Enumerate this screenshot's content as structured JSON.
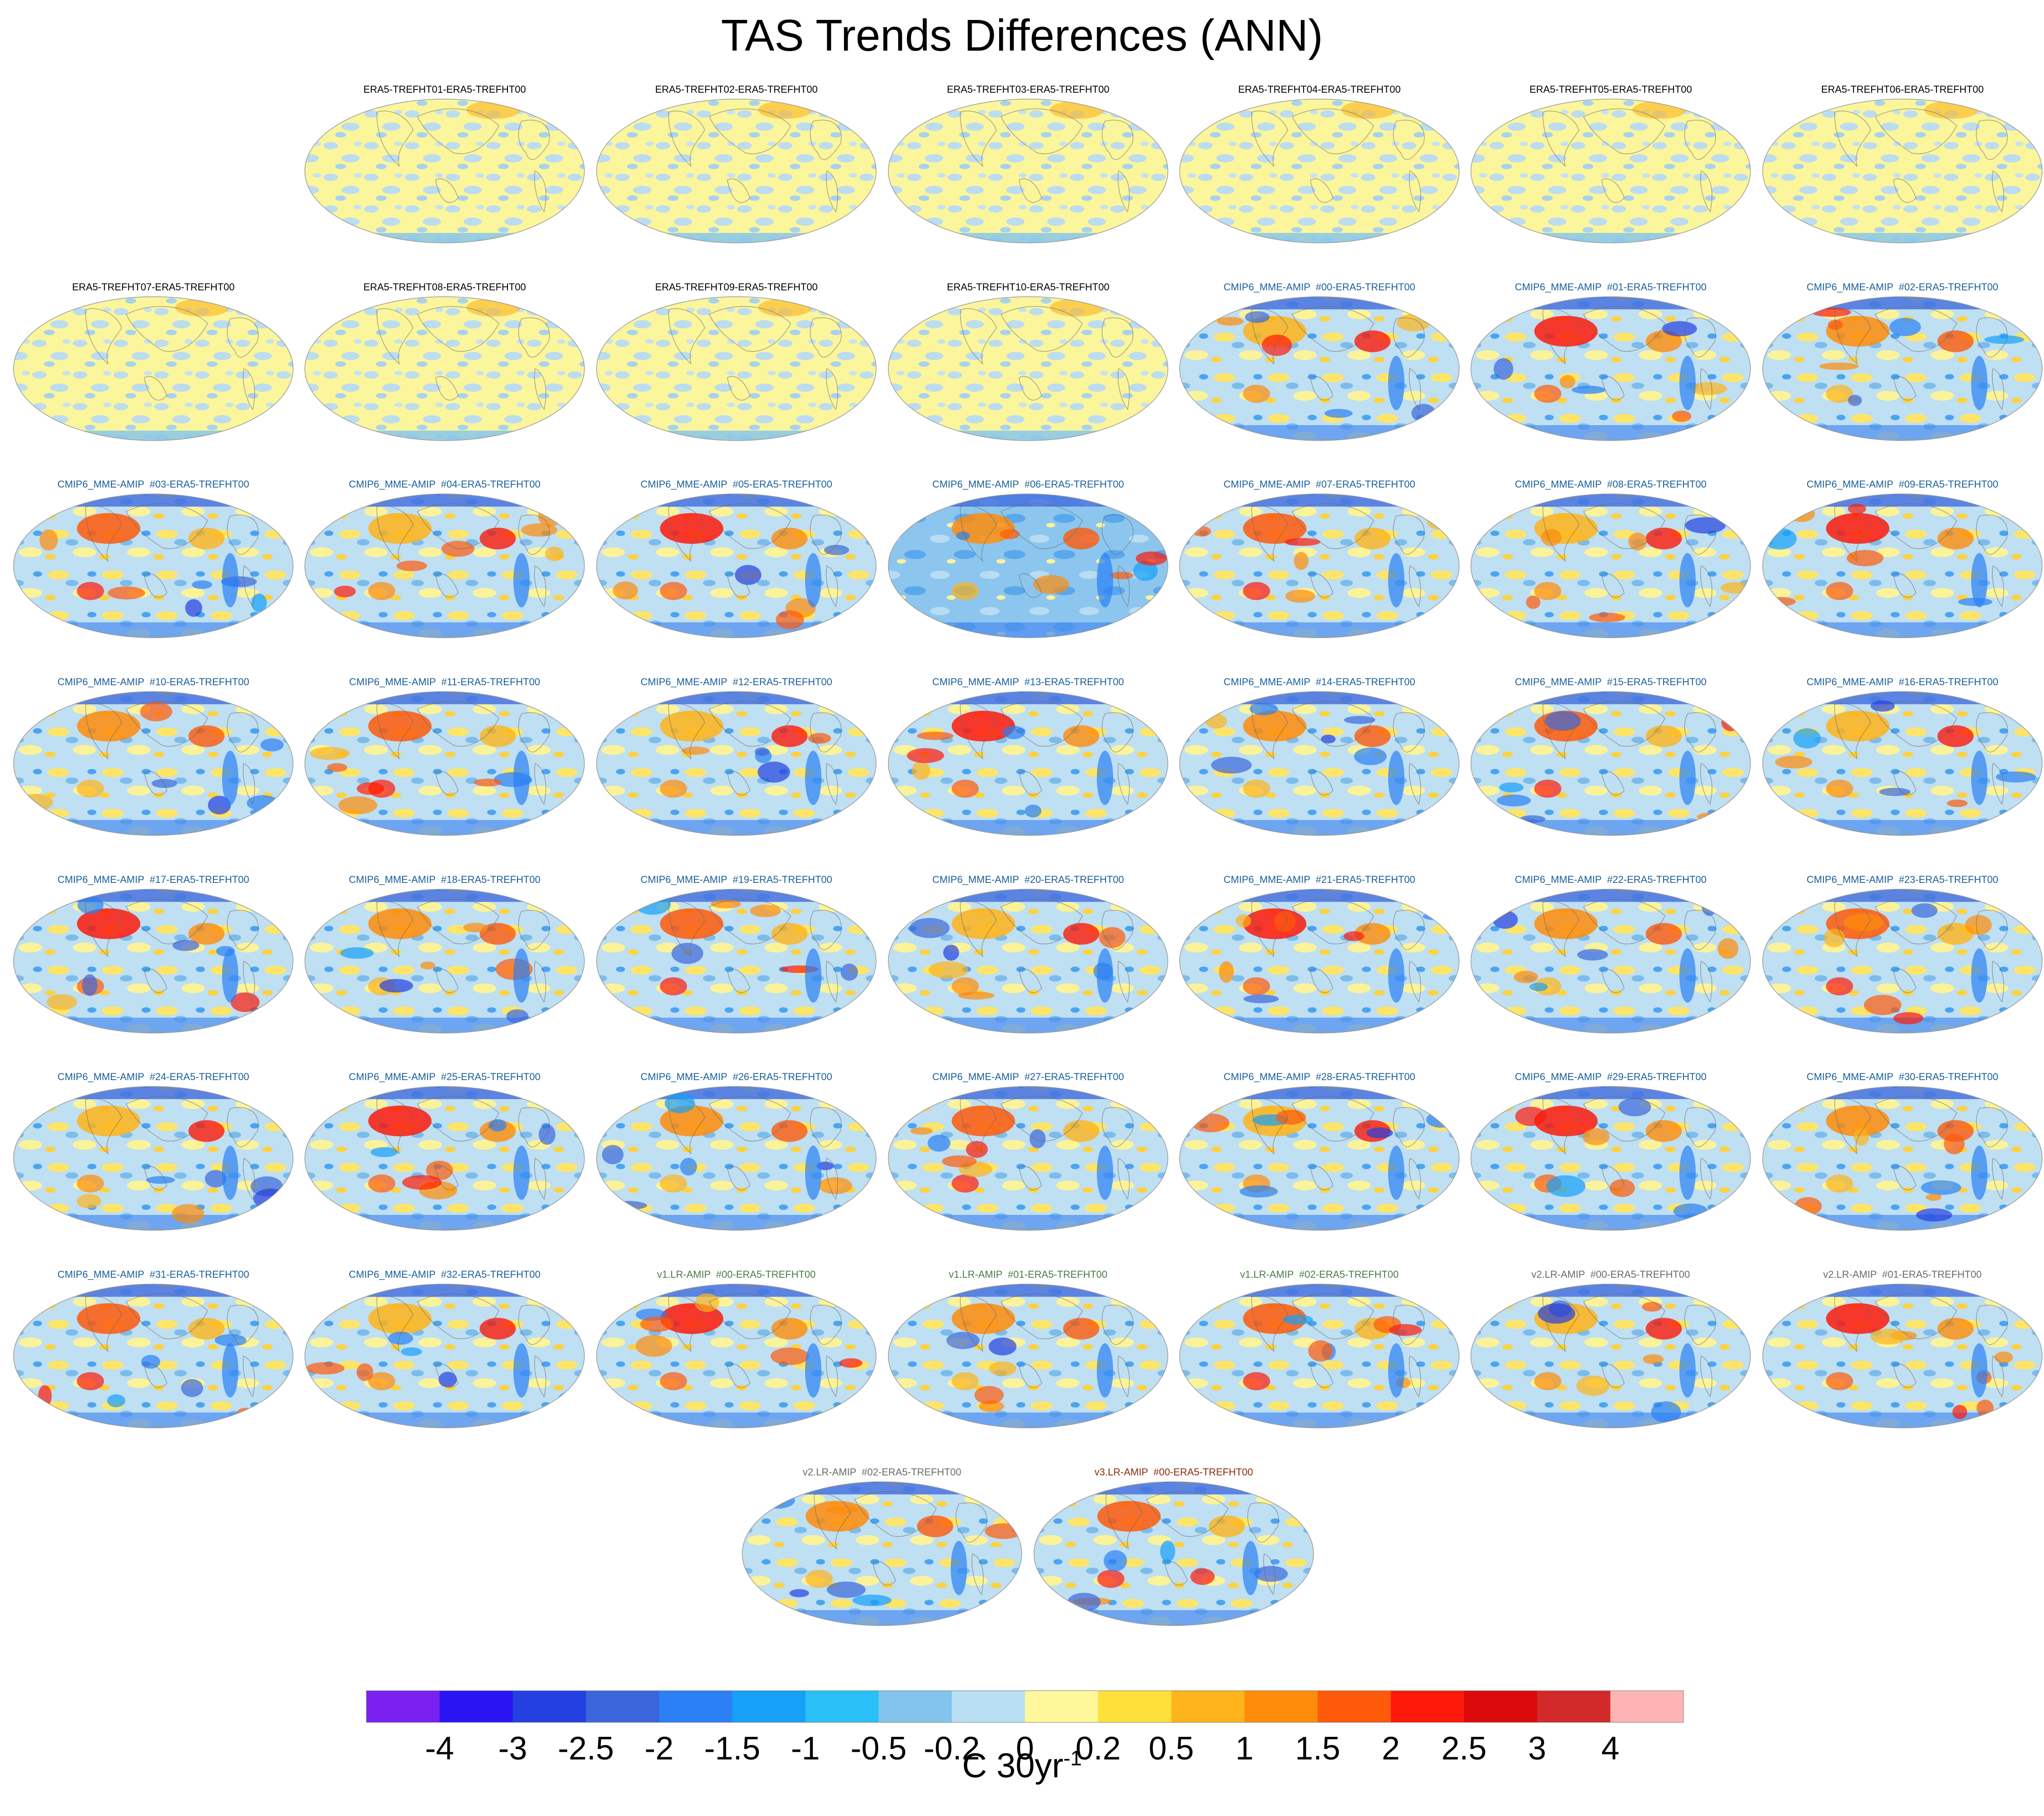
{
  "chart_data": {
    "type": "heatmap",
    "title": "TAS Trends Differences (ANN)",
    "colorbar": {
      "unit": "C 30yr",
      "unit_exponent": "-1",
      "levels": [
        "-4",
        "-3",
        "-2.5",
        "-2",
        "-1.5",
        "-1",
        "-0.5",
        "-0.2",
        "0",
        "0.2",
        "0.5",
        "1",
        "1.5",
        "2",
        "2.5",
        "3",
        "4"
      ],
      "colors": [
        "#7a20f0",
        "#2a14f4",
        "#2440e0",
        "#3a66dc",
        "#2a80f4",
        "#16a0f8",
        "#28c0f6",
        "#82c4ec",
        "#b8def2",
        "#fef89a",
        "#fee03a",
        "#feb41a",
        "#fe8c0a",
        "#fe5a0a",
        "#fe1a0a",
        "#dc0a0a",
        "#d22a2a",
        "#feb4b4"
      ]
    },
    "panels": [
      {
        "label": "ERA5-TREFHT01-ERA5-TREFHT00",
        "group": "era5"
      },
      {
        "label": "ERA5-TREFHT02-ERA5-TREFHT00",
        "group": "era5"
      },
      {
        "label": "ERA5-TREFHT03-ERA5-TREFHT00",
        "group": "era5"
      },
      {
        "label": "ERA5-TREFHT04-ERA5-TREFHT00",
        "group": "era5"
      },
      {
        "label": "ERA5-TREFHT05-ERA5-TREFHT00",
        "group": "era5"
      },
      {
        "label": "ERA5-TREFHT06-ERA5-TREFHT00",
        "group": "era5"
      },
      {
        "label": "ERA5-TREFHT07-ERA5-TREFHT00",
        "group": "era5"
      },
      {
        "label": "ERA5-TREFHT08-ERA5-TREFHT00",
        "group": "era5"
      },
      {
        "label": "ERA5-TREFHT09-ERA5-TREFHT00",
        "group": "era5"
      },
      {
        "label": "ERA5-TREFHT10-ERA5-TREFHT00",
        "group": "era5"
      },
      {
        "label": "CMIP6_MME-AMIP  #00-ERA5-TREFHT00",
        "group": "cmip6"
      },
      {
        "label": "CMIP6_MME-AMIP  #01-ERA5-TREFHT00",
        "group": "cmip6"
      },
      {
        "label": "CMIP6_MME-AMIP  #02-ERA5-TREFHT00",
        "group": "cmip6"
      },
      {
        "label": "CMIP6_MME-AMIP  #03-ERA5-TREFHT00",
        "group": "cmip6"
      },
      {
        "label": "CMIP6_MME-AMIP  #04-ERA5-TREFHT00",
        "group": "cmip6"
      },
      {
        "label": "CMIP6_MME-AMIP  #05-ERA5-TREFHT00",
        "group": "cmip6"
      },
      {
        "label": "CMIP6_MME-AMIP  #06-ERA5-TREFHT00",
        "group": "cmip6"
      },
      {
        "label": "CMIP6_MME-AMIP  #07-ERA5-TREFHT00",
        "group": "cmip6"
      },
      {
        "label": "CMIP6_MME-AMIP  #08-ERA5-TREFHT00",
        "group": "cmip6"
      },
      {
        "label": "CMIP6_MME-AMIP  #09-ERA5-TREFHT00",
        "group": "cmip6"
      },
      {
        "label": "CMIP6_MME-AMIP  #10-ERA5-TREFHT00",
        "group": "cmip6"
      },
      {
        "label": "CMIP6_MME-AMIP  #11-ERA5-TREFHT00",
        "group": "cmip6"
      },
      {
        "label": "CMIP6_MME-AMIP  #12-ERA5-TREFHT00",
        "group": "cmip6"
      },
      {
        "label": "CMIP6_MME-AMIP  #13-ERA5-TREFHT00",
        "group": "cmip6"
      },
      {
        "label": "CMIP6_MME-AMIP  #14-ERA5-TREFHT00",
        "group": "cmip6"
      },
      {
        "label": "CMIP6_MME-AMIP  #15-ERA5-TREFHT00",
        "group": "cmip6"
      },
      {
        "label": "CMIP6_MME-AMIP  #16-ERA5-TREFHT00",
        "group": "cmip6"
      },
      {
        "label": "CMIP6_MME-AMIP  #17-ERA5-TREFHT00",
        "group": "cmip6"
      },
      {
        "label": "CMIP6_MME-AMIP  #18-ERA5-TREFHT00",
        "group": "cmip6"
      },
      {
        "label": "CMIP6_MME-AMIP  #19-ERA5-TREFHT00",
        "group": "cmip6"
      },
      {
        "label": "CMIP6_MME-AMIP  #20-ERA5-TREFHT00",
        "group": "cmip6"
      },
      {
        "label": "CMIP6_MME-AMIP  #21-ERA5-TREFHT00",
        "group": "cmip6"
      },
      {
        "label": "CMIP6_MME-AMIP  #22-ERA5-TREFHT00",
        "group": "cmip6"
      },
      {
        "label": "CMIP6_MME-AMIP  #23-ERA5-TREFHT00",
        "group": "cmip6"
      },
      {
        "label": "CMIP6_MME-AMIP  #24-ERA5-TREFHT00",
        "group": "cmip6"
      },
      {
        "label": "CMIP6_MME-AMIP  #25-ERA5-TREFHT00",
        "group": "cmip6"
      },
      {
        "label": "CMIP6_MME-AMIP  #26-ERA5-TREFHT00",
        "group": "cmip6"
      },
      {
        "label": "CMIP6_MME-AMIP  #27-ERA5-TREFHT00",
        "group": "cmip6"
      },
      {
        "label": "CMIP6_MME-AMIP  #28-ERA5-TREFHT00",
        "group": "cmip6"
      },
      {
        "label": "CMIP6_MME-AMIP  #29-ERA5-TREFHT00",
        "group": "cmip6"
      },
      {
        "label": "CMIP6_MME-AMIP  #30-ERA5-TREFHT00",
        "group": "cmip6"
      },
      {
        "label": "CMIP6_MME-AMIP  #31-ERA5-TREFHT00",
        "group": "cmip6"
      },
      {
        "label": "CMIP6_MME-AMIP  #32-ERA5-TREFHT00",
        "group": "cmip6"
      },
      {
        "label": "v1.LR-AMIP  #00-ERA5-TREFHT00",
        "group": "v1"
      },
      {
        "label": "v1.LR-AMIP  #01-ERA5-TREFHT00",
        "group": "v1"
      },
      {
        "label": "v1.LR-AMIP  #02-ERA5-TREFHT00",
        "group": "v1"
      },
      {
        "label": "v2.LR-AMIP  #00-ERA5-TREFHT00",
        "group": "v2"
      },
      {
        "label": "v2.LR-AMIP  #01-ERA5-TREFHT00",
        "group": "v2"
      },
      {
        "label": "v2.LR-AMIP  #02-ERA5-TREFHT00",
        "group": "v2"
      },
      {
        "label": "v3.LR-AMIP  #00-ERA5-TREFHT00",
        "group": "v3"
      }
    ],
    "group_colors": {
      "era5": "#000000",
      "cmip6": "#1a5f9a",
      "v1": "#4a7a4a",
      "v2": "#6a6a6a",
      "v3": "#8b2a10"
    }
  }
}
